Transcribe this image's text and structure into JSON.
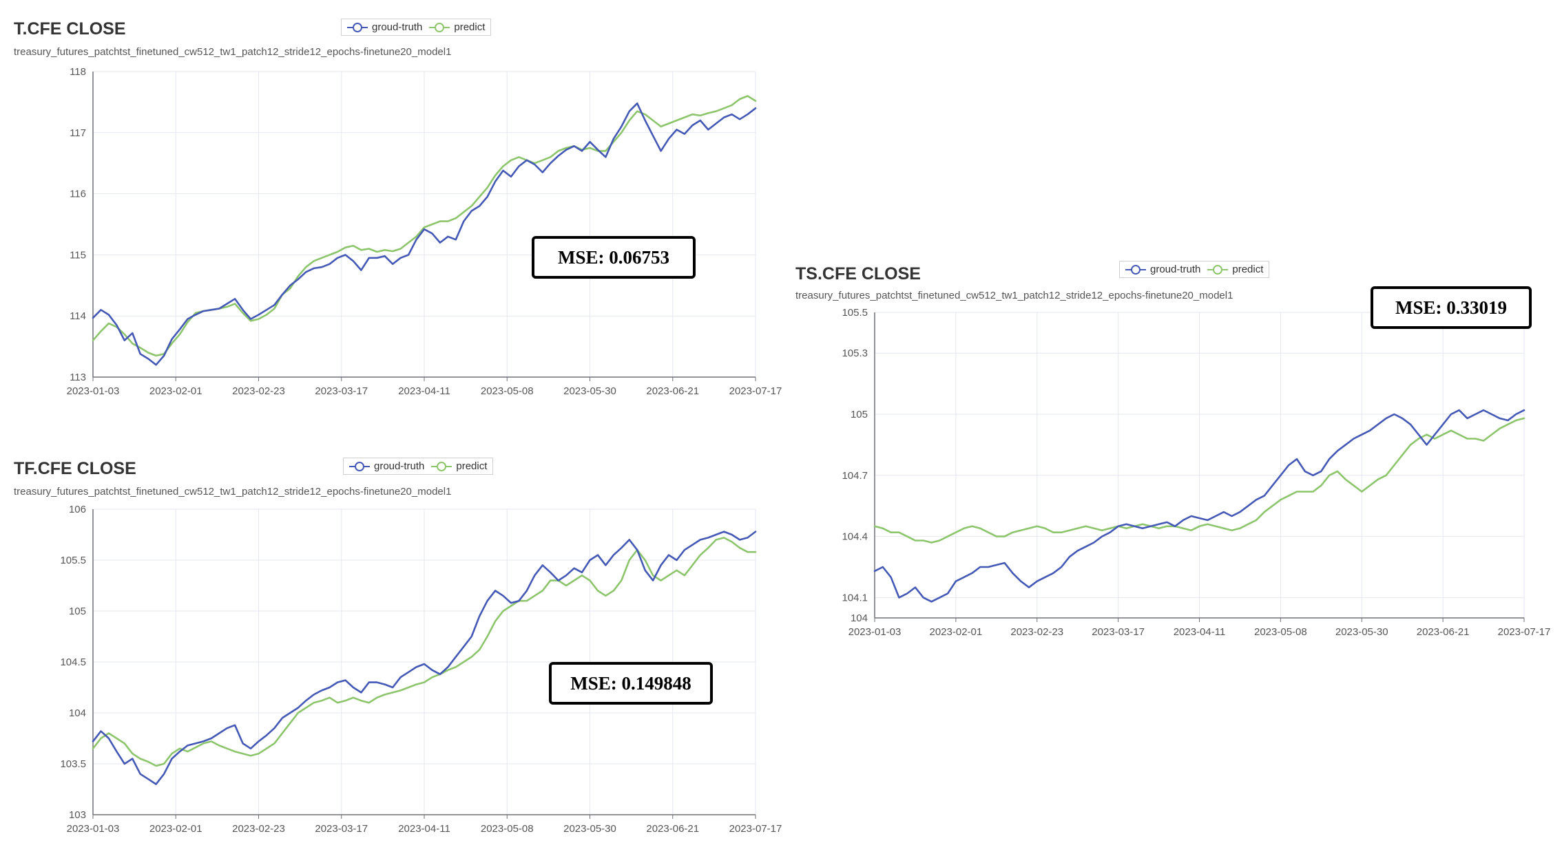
{
  "colors": {
    "ground_truth": "#4459b5",
    "predict": "#8cc56b",
    "grid": "#e4e7f0",
    "axis": "#6e7079"
  },
  "legend": {
    "ground_truth_label": "groud-truth",
    "predict_label": "predict"
  },
  "chart_data": [
    {
      "type": "line",
      "title": "T.CFE CLOSE",
      "subtitle": "treasury_futures_patchtst_finetuned_cw512_tw1_patch12_stride12_epochs-finetune20_model1",
      "ylim": [
        113,
        118
      ],
      "yticks": [
        "113",
        "114",
        "115",
        "116",
        "117",
        "118"
      ],
      "x_tick_labels": [
        "2023-01-03",
        "2023-02-01",
        "2023-02-23",
        "2023-03-17",
        "2023-04-11",
        "2023-05-08",
        "2023-05-30",
        "2023-06-21",
        "2023-07-17"
      ],
      "grid": true,
      "legend_position": "top-center",
      "mse_label": "MSE: 0.06753",
      "series": [
        {
          "name": "groud-truth",
          "color": "#4459b5",
          "values": [
            113.97,
            114.1,
            114.02,
            113.85,
            113.6,
            113.72,
            113.38,
            113.3,
            113.2,
            113.35,
            113.62,
            113.78,
            113.95,
            114.02,
            114.08,
            114.1,
            114.12,
            114.2,
            114.28,
            114.1,
            113.95,
            114.02,
            114.1,
            114.18,
            114.35,
            114.5,
            114.6,
            114.72,
            114.78,
            114.8,
            114.85,
            114.95,
            115.0,
            114.9,
            114.75,
            114.95,
            114.95,
            114.98,
            114.85,
            114.95,
            115.0,
            115.25,
            115.42,
            115.35,
            115.2,
            115.3,
            115.25,
            115.55,
            115.72,
            115.8,
            115.95,
            116.2,
            116.38,
            116.28,
            116.45,
            116.55,
            116.48,
            116.35,
            116.5,
            116.62,
            116.72,
            116.78,
            116.7,
            116.85,
            116.72,
            116.6,
            116.9,
            117.1,
            117.35,
            117.48,
            117.2,
            116.95,
            116.7,
            116.9,
            117.05,
            116.98,
            117.12,
            117.2,
            117.05,
            117.15,
            117.25,
            117.3,
            117.22,
            117.3,
            117.4
          ]
        },
        {
          "name": "predict",
          "color": "#8cc56b",
          "values": [
            113.6,
            113.75,
            113.88,
            113.82,
            113.7,
            113.55,
            113.48,
            113.4,
            113.35,
            113.38,
            113.55,
            113.7,
            113.9,
            114.05,
            114.08,
            114.1,
            114.12,
            114.15,
            114.2,
            114.05,
            113.92,
            113.95,
            114.02,
            114.12,
            114.35,
            114.45,
            114.65,
            114.8,
            114.9,
            114.95,
            115.0,
            115.05,
            115.12,
            115.15,
            115.08,
            115.1,
            115.05,
            115.08,
            115.06,
            115.1,
            115.2,
            115.3,
            115.45,
            115.5,
            115.55,
            115.55,
            115.6,
            115.7,
            115.8,
            115.95,
            116.1,
            116.3,
            116.45,
            116.55,
            116.6,
            116.55,
            116.5,
            116.55,
            116.6,
            116.7,
            116.75,
            116.78,
            116.72,
            116.75,
            116.7,
            116.7,
            116.85,
            117.0,
            117.2,
            117.35,
            117.3,
            117.2,
            117.1,
            117.15,
            117.2,
            117.25,
            117.3,
            117.28,
            117.32,
            117.35,
            117.4,
            117.45,
            117.55,
            117.6,
            117.52
          ]
        }
      ]
    },
    {
      "type": "line",
      "title": "TF.CFE CLOSE",
      "subtitle": "treasury_futures_patchtst_finetuned_cw512_tw1_patch12_stride12_epochs-finetune20_model1",
      "ylim": [
        103,
        106
      ],
      "yticks": [
        "103",
        "103.5",
        "104",
        "104.5",
        "105",
        "105.5",
        "106"
      ],
      "x_tick_labels": [
        "2023-01-03",
        "2023-02-01",
        "2023-02-23",
        "2023-03-17",
        "2023-04-11",
        "2023-05-08",
        "2023-05-30",
        "2023-06-21",
        "2023-07-17"
      ],
      "grid": true,
      "legend_position": "top-center",
      "mse_label": "MSE: 0.149848",
      "series": [
        {
          "name": "groud-truth",
          "color": "#4459b5",
          "values": [
            103.72,
            103.82,
            103.75,
            103.62,
            103.5,
            103.55,
            103.4,
            103.35,
            103.3,
            103.4,
            103.55,
            103.62,
            103.68,
            103.7,
            103.72,
            103.75,
            103.8,
            103.85,
            103.88,
            103.7,
            103.65,
            103.72,
            103.78,
            103.85,
            103.95,
            104.0,
            104.05,
            104.12,
            104.18,
            104.22,
            104.25,
            104.3,
            104.32,
            104.25,
            104.2,
            104.3,
            104.3,
            104.28,
            104.25,
            104.35,
            104.4,
            104.45,
            104.48,
            104.42,
            104.38,
            104.45,
            104.55,
            104.65,
            104.75,
            104.95,
            105.1,
            105.2,
            105.15,
            105.08,
            105.1,
            105.2,
            105.35,
            105.45,
            105.38,
            105.3,
            105.35,
            105.42,
            105.38,
            105.5,
            105.55,
            105.45,
            105.55,
            105.62,
            105.7,
            105.6,
            105.4,
            105.3,
            105.45,
            105.55,
            105.5,
            105.6,
            105.65,
            105.7,
            105.72,
            105.75,
            105.78,
            105.75,
            105.7,
            105.72,
            105.78
          ]
        },
        {
          "name": "predict",
          "color": "#8cc56b",
          "values": [
            103.65,
            103.75,
            103.8,
            103.75,
            103.7,
            103.6,
            103.55,
            103.52,
            103.48,
            103.5,
            103.6,
            103.65,
            103.62,
            103.66,
            103.7,
            103.72,
            103.68,
            103.65,
            103.62,
            103.6,
            103.58,
            103.6,
            103.65,
            103.7,
            103.8,
            103.9,
            104.0,
            104.05,
            104.1,
            104.12,
            104.15,
            104.1,
            104.12,
            104.15,
            104.12,
            104.1,
            104.15,
            104.18,
            104.2,
            104.22,
            104.25,
            104.28,
            104.3,
            104.35,
            104.38,
            104.42,
            104.45,
            104.5,
            104.55,
            104.62,
            104.75,
            104.9,
            105.0,
            105.05,
            105.1,
            105.1,
            105.15,
            105.2,
            105.3,
            105.3,
            105.25,
            105.3,
            105.35,
            105.3,
            105.2,
            105.15,
            105.2,
            105.3,
            105.5,
            105.6,
            105.5,
            105.35,
            105.3,
            105.35,
            105.4,
            105.35,
            105.45,
            105.55,
            105.62,
            105.7,
            105.72,
            105.68,
            105.62,
            105.58,
            105.58
          ]
        }
      ]
    },
    {
      "type": "line",
      "title": "TS.CFE CLOSE",
      "subtitle": "treasury_futures_patchtst_finetuned_cw512_tw1_patch12_stride12_epochs-finetune20_model1",
      "ylim": [
        104,
        105.5
      ],
      "yticks": [
        "104",
        "104.1",
        "104.4",
        "104.7",
        "105",
        "105.3",
        "105.5"
      ],
      "x_tick_labels": [
        "2023-01-03",
        "2023-02-01",
        "2023-02-23",
        "2023-03-17",
        "2023-04-11",
        "2023-05-08",
        "2023-05-30",
        "2023-06-21",
        "2023-07-17"
      ],
      "grid": true,
      "legend_position": "top-center",
      "mse_label": "MSE: 0.33019",
      "series": [
        {
          "name": "groud-truth",
          "color": "#4459b5",
          "values": [
            104.23,
            104.25,
            104.2,
            104.1,
            104.12,
            104.15,
            104.1,
            104.08,
            104.1,
            104.12,
            104.18,
            104.2,
            104.22,
            104.25,
            104.25,
            104.26,
            104.27,
            104.22,
            104.18,
            104.15,
            104.18,
            104.2,
            104.22,
            104.25,
            104.3,
            104.33,
            104.35,
            104.37,
            104.4,
            104.42,
            104.45,
            104.46,
            104.45,
            104.44,
            104.45,
            104.46,
            104.47,
            104.45,
            104.48,
            104.5,
            104.49,
            104.48,
            104.5,
            104.52,
            104.5,
            104.52,
            104.55,
            104.58,
            104.6,
            104.65,
            104.7,
            104.75,
            104.78,
            104.72,
            104.7,
            104.72,
            104.78,
            104.82,
            104.85,
            104.88,
            104.9,
            104.92,
            104.95,
            104.98,
            105.0,
            104.98,
            104.95,
            104.9,
            104.85,
            104.9,
            104.95,
            105.0,
            105.02,
            104.98,
            105.0,
            105.02,
            105.0,
            104.98,
            104.97,
            105.0,
            105.02
          ]
        },
        {
          "name": "predict",
          "color": "#8cc56b",
          "values": [
            104.45,
            104.44,
            104.42,
            104.42,
            104.4,
            104.38,
            104.38,
            104.37,
            104.38,
            104.4,
            104.42,
            104.44,
            104.45,
            104.44,
            104.42,
            104.4,
            104.4,
            104.42,
            104.43,
            104.44,
            104.45,
            104.44,
            104.42,
            104.42,
            104.43,
            104.44,
            104.45,
            104.44,
            104.43,
            104.44,
            104.45,
            104.44,
            104.45,
            104.46,
            104.45,
            104.44,
            104.45,
            104.45,
            104.44,
            104.43,
            104.45,
            104.46,
            104.45,
            104.44,
            104.43,
            104.44,
            104.46,
            104.48,
            104.52,
            104.55,
            104.58,
            104.6,
            104.62,
            104.62,
            104.62,
            104.65,
            104.7,
            104.72,
            104.68,
            104.65,
            104.62,
            104.65,
            104.68,
            104.7,
            104.75,
            104.8,
            104.85,
            104.88,
            104.9,
            104.88,
            104.9,
            104.92,
            104.9,
            104.88,
            104.88,
            104.87,
            104.9,
            104.93,
            104.95,
            104.97,
            104.98
          ]
        }
      ]
    }
  ]
}
